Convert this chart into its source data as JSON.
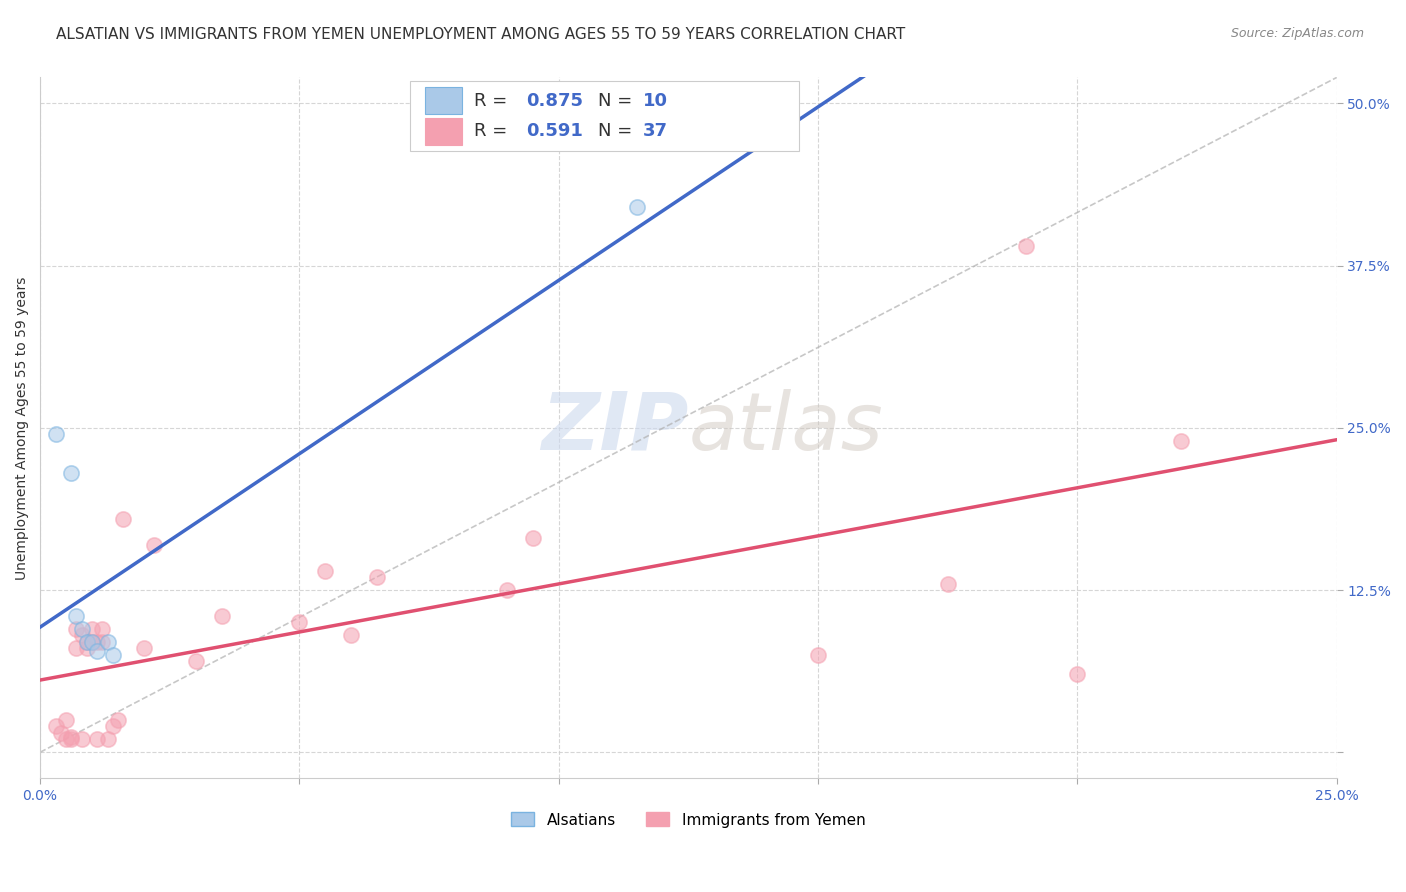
{
  "title": "ALSATIAN VS IMMIGRANTS FROM YEMEN UNEMPLOYMENT AMONG AGES 55 TO 59 YEARS CORRELATION CHART",
  "source": "Source: ZipAtlas.com",
  "xlabel": "",
  "ylabel": "Unemployment Among Ages 55 to 59 years",
  "xlim": [
    0.0,
    0.25
  ],
  "ylim": [
    -0.02,
    0.52
  ],
  "xticks": [
    0.0,
    0.05,
    0.1,
    0.15,
    0.2,
    0.25
  ],
  "xticklabels": [
    "0.0%",
    "",
    "",
    "",
    "",
    "25.0%"
  ],
  "yticks": [
    0.0,
    0.125,
    0.25,
    0.375,
    0.5
  ],
  "yticklabels": [
    "",
    "12.5%",
    "25.0%",
    "37.5%",
    "50.0%"
  ],
  "background_color": "#ffffff",
  "watermark_zip": "ZIP",
  "watermark_atlas": "atlas",
  "legend_r1": "R = ",
  "legend_v1": "0.875",
  "legend_n1_label": "N = ",
  "legend_n1_val": "10",
  "legend_r2": "R = ",
  "legend_v2": "0.591",
  "legend_n2_label": "N = ",
  "legend_n2_val": "37",
  "alsatian_color": "#7ab3e0",
  "alsatian_color_fill": "#aac9e8",
  "yemen_color": "#f4a0b0",
  "yemen_color_fill": "#f4a0b0",
  "blue_line_color": "#4169c8",
  "pink_line_color": "#e05070",
  "dashed_line_color": "#b0b0b0",
  "alsatian_x": [
    0.003,
    0.006,
    0.007,
    0.008,
    0.009,
    0.01,
    0.011,
    0.013,
    0.014,
    0.115
  ],
  "alsatian_y": [
    0.245,
    0.215,
    0.105,
    0.095,
    0.085,
    0.085,
    0.078,
    0.085,
    0.075,
    0.42
  ],
  "yemen_x": [
    0.003,
    0.004,
    0.005,
    0.005,
    0.006,
    0.006,
    0.007,
    0.007,
    0.008,
    0.008,
    0.009,
    0.009,
    0.01,
    0.01,
    0.011,
    0.011,
    0.012,
    0.012,
    0.013,
    0.014,
    0.015,
    0.016,
    0.02,
    0.022,
    0.03,
    0.035,
    0.05,
    0.055,
    0.06,
    0.065,
    0.09,
    0.095,
    0.15,
    0.175,
    0.19,
    0.2,
    0.22
  ],
  "yemen_y": [
    0.02,
    0.015,
    0.01,
    0.025,
    0.01,
    0.012,
    0.08,
    0.095,
    0.01,
    0.09,
    0.08,
    0.085,
    0.085,
    0.095,
    0.01,
    0.085,
    0.085,
    0.095,
    0.01,
    0.02,
    0.025,
    0.18,
    0.08,
    0.16,
    0.07,
    0.105,
    0.1,
    0.14,
    0.09,
    0.135,
    0.125,
    0.165,
    0.075,
    0.13,
    0.39,
    0.06,
    0.24
  ],
  "title_fontsize": 11,
  "axis_label_fontsize": 10,
  "tick_fontsize": 10,
  "legend_fontsize": 13,
  "marker_size": 120,
  "marker_alpha": 0.55,
  "line_width": 2.5
}
